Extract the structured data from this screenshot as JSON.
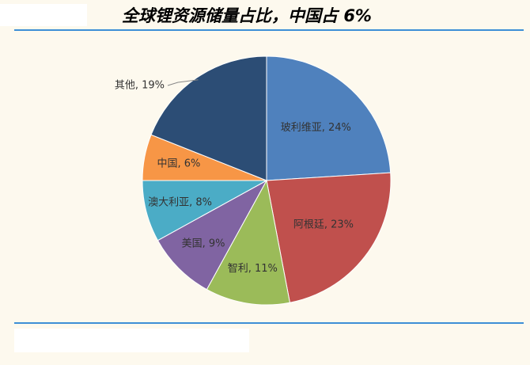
{
  "chart_data": {
    "type": "pie",
    "title": "全球锂资源储量占比，中国占 6%",
    "values": [
      24,
      23,
      11,
      9,
      8,
      6,
      19
    ],
    "value_labels": [
      "玻利维亚, 24%",
      "阿根廷, 23%",
      "智利, 11%",
      "美国, 9%",
      "澳大利亚, 8%",
      "中国, 6%",
      "其他, 19%"
    ],
    "colors": [
      "#4f81bd",
      "#c0504d",
      "#9bbb59",
      "#8064a2",
      "#4bacc6",
      "#f79646",
      "#2c4d75"
    ]
  }
}
